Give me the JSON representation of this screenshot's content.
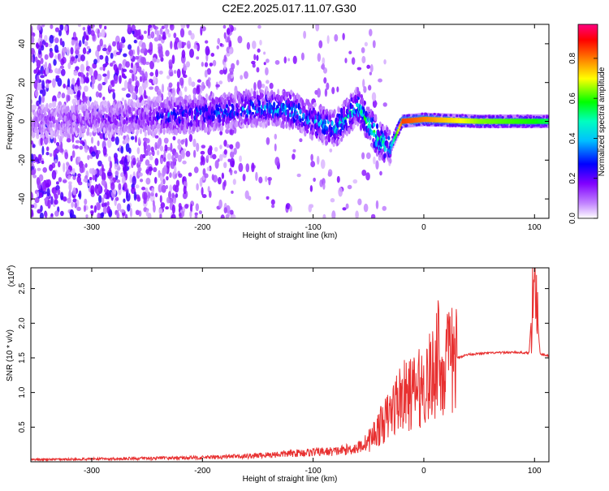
{
  "title": "C2E2.2025.017.11.07.G30",
  "chart_data": [
    {
      "type": "heatmap",
      "xlabel": "Height of straight line (km)",
      "ylabel": "Frequency (Hz)",
      "xlim": [
        -355,
        113
      ],
      "ylim": [
        -50,
        50
      ],
      "xticks": [
        -300,
        -200,
        -100,
        0,
        100
      ],
      "yticks": [
        -40,
        -20,
        0,
        20,
        40
      ],
      "colorbar": {
        "label": "Normalized spectral amplitude",
        "range": [
          0.0,
          0.97
        ],
        "ticks": [
          0.0,
          0.2,
          0.4,
          0.6,
          0.8
        ],
        "colors": [
          "#ffffff",
          "#c080ff",
          "#8000ff",
          "#0000ff",
          "#00c0ff",
          "#00ffc0",
          "#00ff00",
          "#ffff00",
          "#ff8000",
          "#ff0000",
          "#ff0080"
        ]
      },
      "ridge": {
        "description_points": [
          {
            "x": -355,
            "f": 0,
            "a": 0.15
          },
          {
            "x": -250,
            "f": 2,
            "a": 0.2
          },
          {
            "x": -230,
            "f": 3,
            "a": 0.3
          },
          {
            "x": -200,
            "f": 4,
            "a": 0.3
          },
          {
            "x": -150,
            "f": 7,
            "a": 0.35
          },
          {
            "x": -120,
            "f": 6,
            "a": 0.4
          },
          {
            "x": -100,
            "f": 0,
            "a": 0.35
          },
          {
            "x": -80,
            "f": -4,
            "a": 0.4
          },
          {
            "x": -60,
            "f": 8,
            "a": 0.45
          },
          {
            "x": -40,
            "f": -10,
            "a": 0.5
          },
          {
            "x": -30,
            "f": -13,
            "a": 0.4
          },
          {
            "x": -20,
            "f": 0,
            "a": 0.85
          },
          {
            "x": 0,
            "f": 1,
            "a": 0.8
          },
          {
            "x": 50,
            "f": 0,
            "a": 0.65
          },
          {
            "x": 100,
            "f": 0,
            "a": 0.6
          },
          {
            "x": 113,
            "f": 0,
            "a": 0.55
          }
        ]
      }
    },
    {
      "type": "line",
      "xlabel": "Height of straight line (km)",
      "ylabel": "SNR (10 * v/v)",
      "multiplier": "(x10",
      "multiplier_exp": "4",
      "multiplier_close": ")",
      "xlim": [
        -355,
        113
      ],
      "ylim": [
        0,
        2.8
      ],
      "xticks": [
        -300,
        -200,
        -100,
        0,
        100
      ],
      "yticks": [
        0.5,
        1.0,
        1.5,
        2.0,
        2.5
      ],
      "series": [
        {
          "color": "#e83030",
          "x": [
            -355,
            -300,
            -250,
            -200,
            -160,
            -120,
            -100,
            -80,
            -60,
            -50,
            -40,
            -30,
            -25,
            -20,
            -15,
            -10,
            -5,
            0,
            5,
            10,
            13,
            15,
            20,
            30,
            40,
            60,
            80,
            95,
            100,
            105,
            113
          ],
          "y": [
            0.03,
            0.04,
            0.05,
            0.06,
            0.08,
            0.12,
            0.14,
            0.15,
            0.2,
            0.3,
            0.5,
            0.7,
            0.85,
            0.95,
            0.95,
            1.0,
            1.05,
            1.1,
            1.2,
            1.3,
            1.85,
            1.2,
            1.4,
            1.5,
            1.55,
            1.57,
            1.58,
            1.57,
            2.75,
            1.55,
            1.53
          ]
        }
      ]
    }
  ]
}
